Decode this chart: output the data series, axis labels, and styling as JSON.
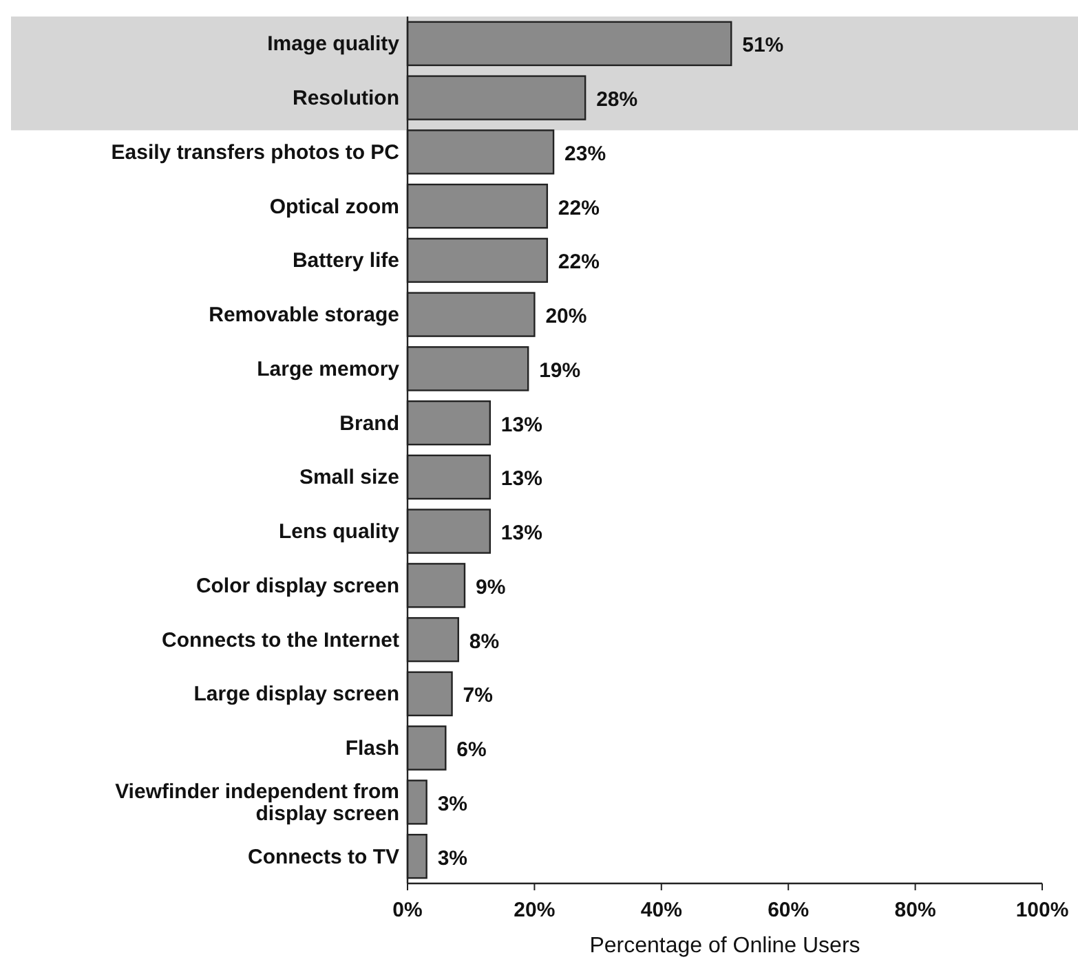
{
  "chart_data": {
    "type": "bar",
    "orientation": "horizontal",
    "xlabel": "Percentage of Online Users",
    "categories": [
      "Image quality",
      "Resolution",
      "Easily transfers photos to PC",
      "Optical zoom",
      "Battery life",
      "Removable storage",
      "Large memory",
      "Brand",
      "Small size",
      "Lens quality",
      "Color display screen",
      "Connects to the Internet",
      "Large display screen",
      "Flash",
      "Viewfinder independent from display screen",
      "Connects to TV"
    ],
    "values": [
      51,
      28,
      23,
      22,
      22,
      20,
      19,
      13,
      13,
      13,
      9,
      8,
      7,
      6,
      3,
      3
    ],
    "value_labels": [
      "51%",
      "28%",
      "23%",
      "22%",
      "22%",
      "20%",
      "19%",
      "13%",
      "13%",
      "13%",
      "9%",
      "8%",
      "7%",
      "6%",
      "3%",
      "3%"
    ],
    "color": "#8a8a8a",
    "xlim": [
      0,
      100
    ],
    "xticks": [
      {
        "value": 0,
        "label": "0%"
      },
      {
        "value": 20,
        "label": "20%"
      },
      {
        "value": 40,
        "label": "40%"
      },
      {
        "value": 60,
        "label": "60%"
      },
      {
        "value": 80,
        "label": "80%"
      },
      {
        "value": 100,
        "label": "100%"
      }
    ],
    "bands": [
      {
        "axis": "y",
        "from": "Image quality",
        "to": "Resolution",
        "color": "#d6d6d6"
      }
    ],
    "grid": false
  }
}
